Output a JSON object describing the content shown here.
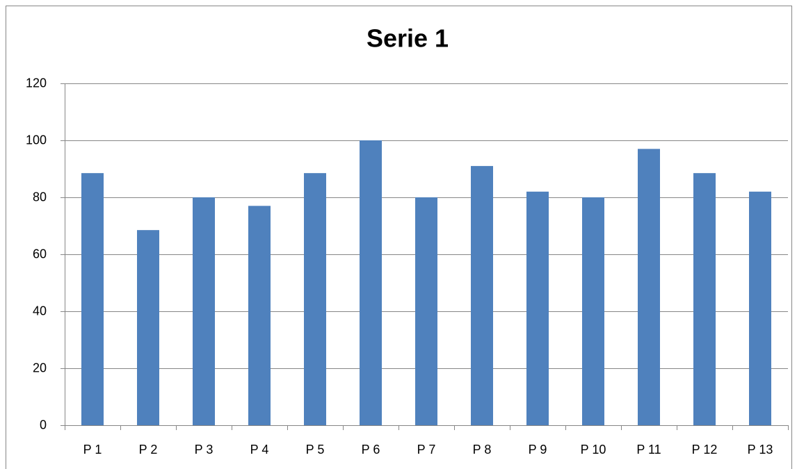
{
  "chart_data": {
    "type": "bar",
    "title": "Serie 1",
    "categories": [
      "P 1",
      "P 2",
      "P 3",
      "P 4",
      "P 5",
      "P 6",
      "P 7",
      "P 8",
      "P 9",
      "P 10",
      "P 11",
      "P 12",
      "P 13"
    ],
    "values": [
      88.5,
      68.5,
      80,
      77,
      88.5,
      100,
      80,
      91,
      82,
      80,
      97,
      88.5,
      82
    ],
    "color": "#4f81bd",
    "ylim": [
      0,
      120
    ],
    "yticks": [
      0,
      20,
      40,
      60,
      80,
      100,
      120
    ],
    "grid": true
  }
}
